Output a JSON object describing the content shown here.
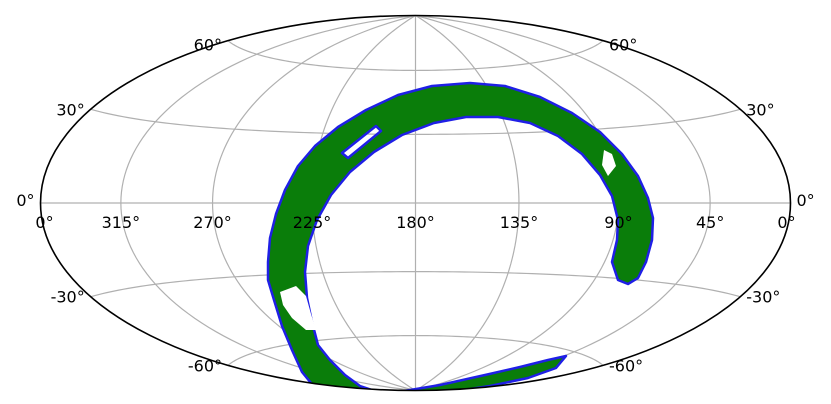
{
  "projection": "aitoff-hammer",
  "colors": {
    "background": "#ffffff",
    "boundary": "#000000",
    "graticule": "#b0b0b0",
    "region_fill": "#0a7d0a",
    "region_outline": "#1f1fe6"
  },
  "longitude_labels": [
    {
      "lon": 360,
      "text": "0°"
    },
    {
      "lon": 315,
      "text": "315°"
    },
    {
      "lon": 270,
      "text": "270°"
    },
    {
      "lon": 225,
      "text": "225°"
    },
    {
      "lon": 180,
      "text": "180°"
    },
    {
      "lon": 135,
      "text": "135°"
    },
    {
      "lon": 90,
      "text": "90°"
    },
    {
      "lon": 45,
      "text": "45°"
    },
    {
      "lon": 0,
      "text": "0°"
    }
  ],
  "latitude_labels": [
    {
      "lat": 60,
      "text": "60°"
    },
    {
      "lat": 30,
      "text": "30°"
    },
    {
      "lat": 0,
      "text": "0°"
    },
    {
      "lat": -30,
      "text": "-30°"
    },
    {
      "lat": -60,
      "text": "-60°"
    }
  ],
  "graticule": {
    "meridians_deg": [
      0,
      45,
      90,
      135,
      180,
      225,
      270,
      315,
      360
    ],
    "parallels_deg": [
      -60,
      -30,
      0,
      30,
      60
    ]
  }
}
